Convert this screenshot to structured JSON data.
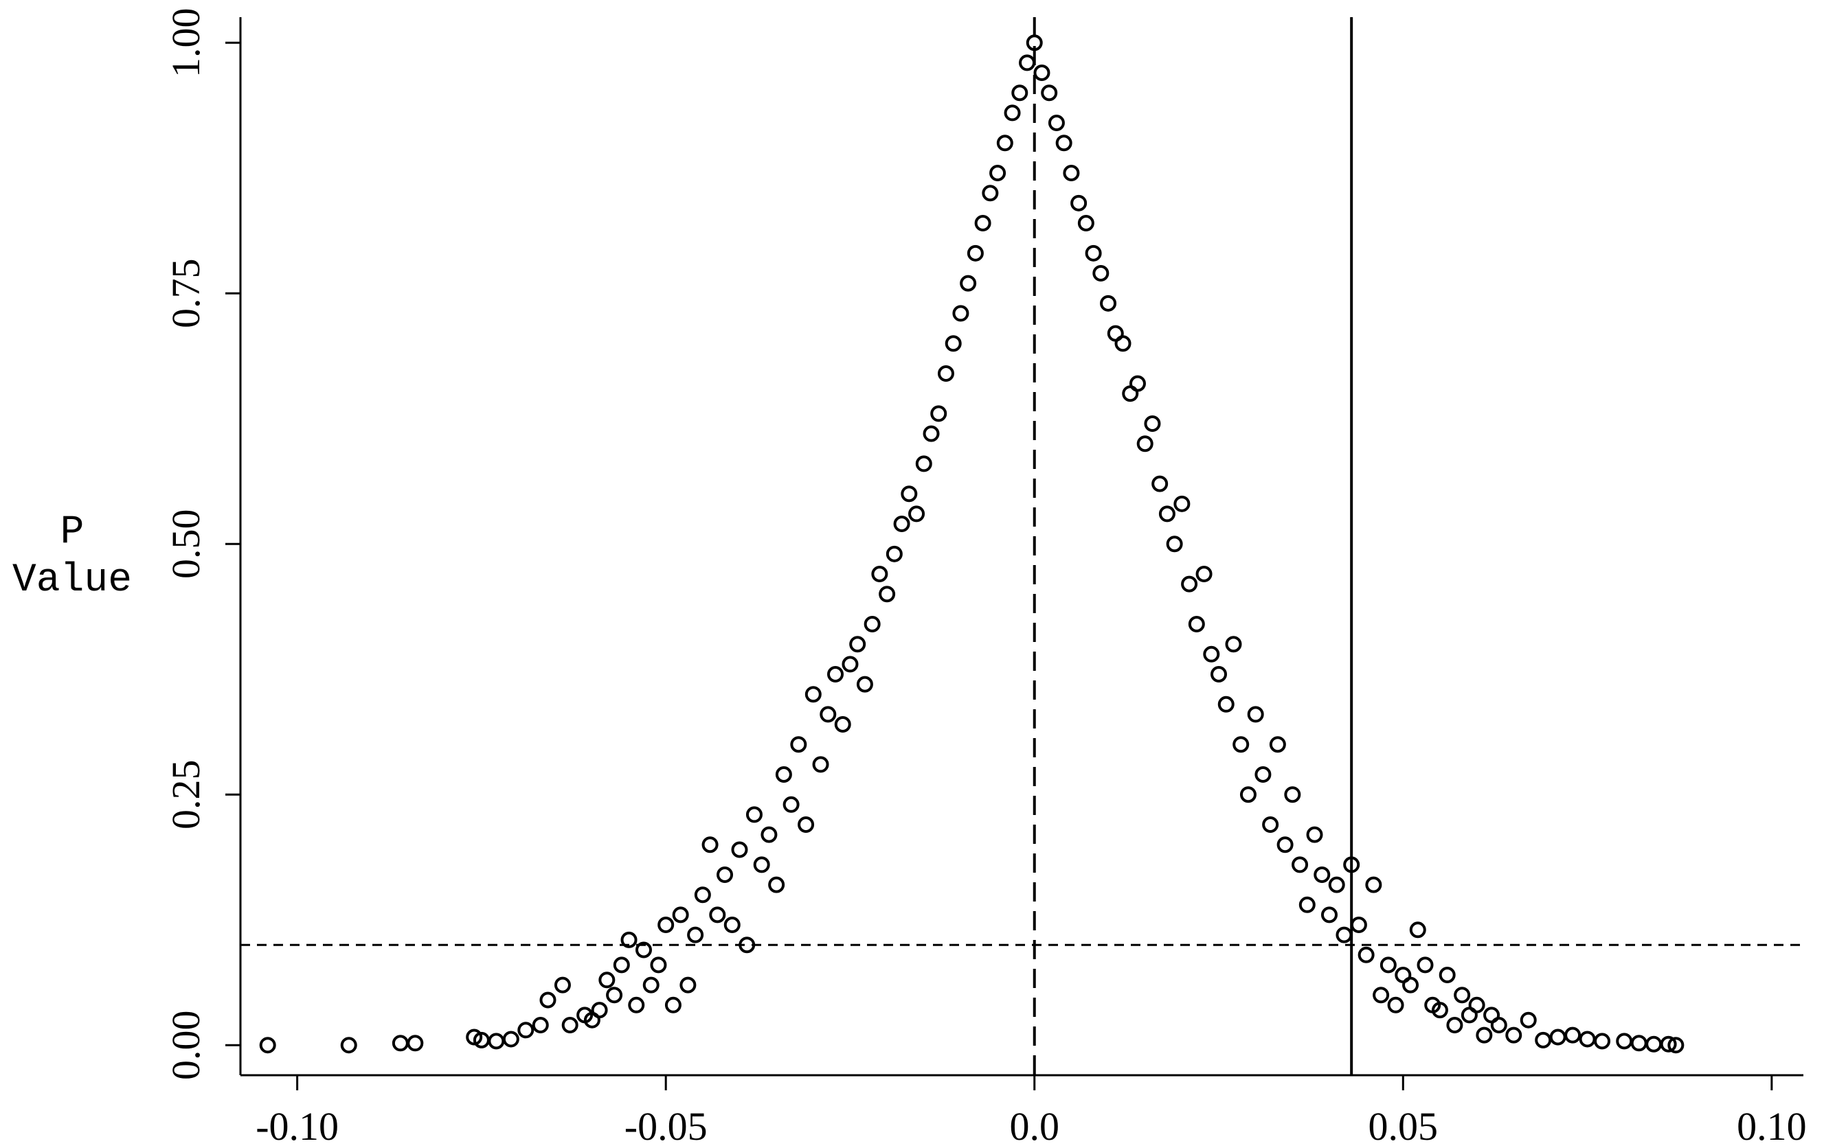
{
  "chart_data": {
    "type": "scatter",
    "ylabel": [
      "P",
      "Value"
    ],
    "xlim": [
      -0.1077,
      0.1043
    ],
    "ylim": [
      -0.03,
      1.0255
    ],
    "xticks": [
      {
        "value": -0.1,
        "label": "-0.10"
      },
      {
        "value": -0.05,
        "label": "-0.05"
      },
      {
        "value": 0,
        "label": "0.0"
      },
      {
        "value": 0.05,
        "label": "0.05"
      },
      {
        "value": 0.1,
        "label": "0.10"
      }
    ],
    "yticks": [
      {
        "value": 0,
        "label": "0.00"
      },
      {
        "value": 0.25,
        "label": "0.25"
      },
      {
        "value": 0.5,
        "label": "0.50"
      },
      {
        "value": 0.75,
        "label": "0.75"
      },
      {
        "value": 1,
        "label": "1.00"
      }
    ],
    "grid": false,
    "reference_lines": {
      "vline_dashed": 0,
      "vline_solid": 0.043,
      "hline_dashed": 0.1
    },
    "series": [
      {
        "color": "#000000",
        "x": [
          -0.104,
          -0.093,
          -0.086,
          -0.084,
          -0.076,
          -0.075,
          -0.073,
          -0.071,
          -0.069,
          -0.067,
          -0.066,
          -0.064,
          -0.063,
          -0.061,
          -0.06,
          -0.059,
          -0.058,
          -0.057,
          -0.056,
          -0.055,
          -0.054,
          -0.053,
          -0.052,
          -0.051,
          -0.05,
          -0.049,
          -0.048,
          -0.047,
          -0.046,
          -0.045,
          -0.044,
          -0.043,
          -0.042,
          -0.041,
          -0.04,
          -0.039,
          -0.038,
          -0.037,
          -0.036,
          -0.035,
          -0.034,
          -0.033,
          -0.032,
          -0.031,
          -0.03,
          -0.029,
          -0.028,
          -0.027,
          -0.026,
          -0.025,
          -0.024,
          -0.023,
          -0.022,
          -0.021,
          -0.02,
          -0.019,
          -0.018,
          -0.017,
          -0.016,
          -0.015,
          -0.014,
          -0.013,
          -0.012,
          -0.011,
          -0.01,
          -0.009,
          -0.008,
          -0.007,
          -0.006,
          -0.005,
          -0.004,
          -0.003,
          -0.002,
          -0.001,
          0,
          0.001,
          0.002,
          0.003,
          0.004,
          0.005,
          0.006,
          0.007,
          0.008,
          0.009,
          0.01,
          0.011,
          0.012,
          0.013,
          0.014,
          0.015,
          0.016,
          0.017,
          0.018,
          0.019,
          0.02,
          0.021,
          0.022,
          0.023,
          0.024,
          0.025,
          0.026,
          0.027,
          0.028,
          0.029,
          0.03,
          0.031,
          0.032,
          0.033,
          0.034,
          0.035,
          0.036,
          0.037,
          0.038,
          0.039,
          0.04,
          0.041,
          0.042,
          0.043,
          0.044,
          0.045,
          0.046,
          0.047,
          0.048,
          0.049,
          0.05,
          0.051,
          0.052,
          0.053,
          0.054,
          0.055,
          0.056,
          0.057,
          0.058,
          0.059,
          0.06,
          0.061,
          0.062,
          0.063,
          0.065,
          0.067,
          0.069,
          0.071,
          0.073,
          0.075,
          0.077,
          0.08,
          0.082,
          0.084,
          0.086,
          0.087
        ],
        "y": [
          0,
          0,
          0.002,
          0.002,
          0.008,
          0.005,
          0.004,
          0.006,
          0.015,
          0.02,
          0.045,
          0.06,
          0.02,
          0.03,
          0.025,
          0.035,
          0.065,
          0.05,
          0.08,
          0.105,
          0.04,
          0.095,
          0.06,
          0.08,
          0.12,
          0.04,
          0.13,
          0.06,
          0.11,
          0.15,
          0.2,
          0.13,
          0.17,
          0.12,
          0.195,
          0.1,
          0.23,
          0.18,
          0.21,
          0.16,
          0.27,
          0.24,
          0.3,
          0.22,
          0.35,
          0.28,
          0.33,
          0.37,
          0.32,
          0.38,
          0.4,
          0.36,
          0.42,
          0.47,
          0.45,
          0.49,
          0.52,
          0.55,
          0.53,
          0.58,
          0.61,
          0.63,
          0.67,
          0.7,
          0.73,
          0.76,
          0.79,
          0.82,
          0.85,
          0.87,
          0.9,
          0.93,
          0.95,
          0.98,
          1,
          0.97,
          0.95,
          0.92,
          0.9,
          0.87,
          0.84,
          0.82,
          0.79,
          0.77,
          0.74,
          0.71,
          0.7,
          0.65,
          0.66,
          0.6,
          0.62,
          0.56,
          0.53,
          0.5,
          0.54,
          0.46,
          0.42,
          0.47,
          0.39,
          0.37,
          0.34,
          0.4,
          0.3,
          0.25,
          0.33,
          0.27,
          0.22,
          0.3,
          0.2,
          0.25,
          0.18,
          0.14,
          0.21,
          0.17,
          0.13,
          0.16,
          0.11,
          0.18,
          0.12,
          0.09,
          0.16,
          0.05,
          0.08,
          0.04,
          0.07,
          0.06,
          0.115,
          0.08,
          0.04,
          0.035,
          0.07,
          0.02,
          0.05,
          0.03,
          0.04,
          0.01,
          0.03,
          0.02,
          0.01,
          0.025,
          0.005,
          0.008,
          0.01,
          0.006,
          0.004,
          0.004,
          0.002,
          0.001,
          0.001,
          0
        ]
      }
    ]
  }
}
